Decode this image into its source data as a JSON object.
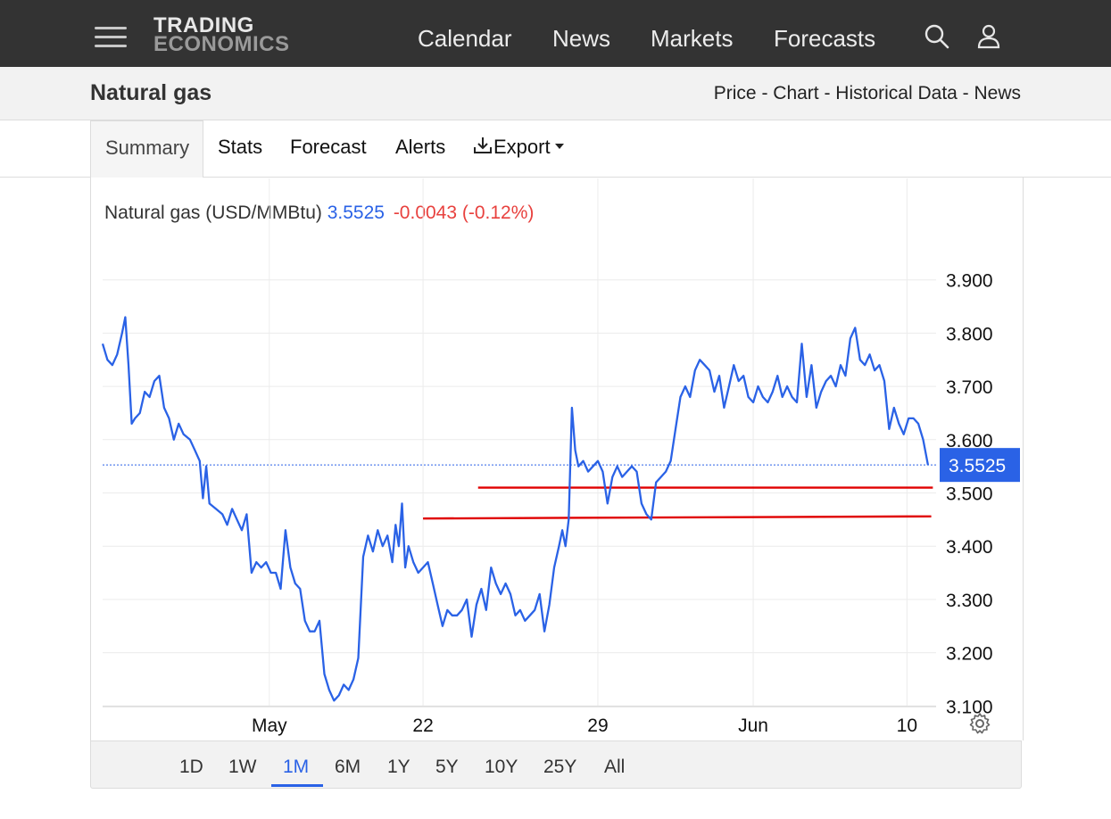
{
  "nav": {
    "logo_line1": "TRADING",
    "logo_line2": "ECONOMICS",
    "links": [
      "Calendar",
      "News",
      "Markets",
      "Forecasts"
    ]
  },
  "header": {
    "title": "Natural gas",
    "breadcrumb": "Price - Chart - Historical Data - News"
  },
  "tabs": {
    "summary": "Summary",
    "stats": "Stats",
    "forecast": "Forecast",
    "alerts": "Alerts",
    "export": "Export"
  },
  "legend": {
    "name": "Natural gas (USD/MMBtu)",
    "value": "3.5525",
    "change": "-0.0043 (-0.12%)"
  },
  "ranges": [
    "1D",
    "1W",
    "1M",
    "6M",
    "1Y",
    "5Y",
    "10Y",
    "25Y",
    "All"
  ],
  "active_range": "1M",
  "colors": {
    "line": "#2a62e6",
    "change_negative": "#e8413e",
    "trendlines": "#e00000",
    "nav_bg": "#333333"
  },
  "chart_data": {
    "type": "line",
    "series": [
      {
        "name": "Natural gas (USD/MMBtu)",
        "points": [
          [
            0,
            3.78
          ],
          [
            0.3,
            3.75
          ],
          [
            0.6,
            3.74
          ],
          [
            0.9,
            3.76
          ],
          [
            1.2,
            3.8
          ],
          [
            1.4,
            3.83
          ],
          [
            1.6,
            3.74
          ],
          [
            1.8,
            3.63
          ],
          [
            2.0,
            3.64
          ],
          [
            2.3,
            3.65
          ],
          [
            2.6,
            3.69
          ],
          [
            2.9,
            3.68
          ],
          [
            3.2,
            3.71
          ],
          [
            3.5,
            3.72
          ],
          [
            3.8,
            3.66
          ],
          [
            4.1,
            3.64
          ],
          [
            4.4,
            3.6
          ],
          [
            4.7,
            3.63
          ],
          [
            5.0,
            3.61
          ],
          [
            5.4,
            3.6
          ],
          [
            5.7,
            3.58
          ],
          [
            6.0,
            3.56
          ],
          [
            6.2,
            3.49
          ],
          [
            6.4,
            3.55
          ],
          [
            6.6,
            3.48
          ],
          [
            7.0,
            3.47
          ],
          [
            7.4,
            3.46
          ],
          [
            7.7,
            3.44
          ],
          [
            8.0,
            3.47
          ],
          [
            8.3,
            3.45
          ],
          [
            8.6,
            3.43
          ],
          [
            8.9,
            3.46
          ],
          [
            9.2,
            3.35
          ],
          [
            9.5,
            3.37
          ],
          [
            9.8,
            3.36
          ],
          [
            10.1,
            3.37
          ],
          [
            10.4,
            3.35
          ],
          [
            10.7,
            3.35
          ],
          [
            11.0,
            3.32
          ],
          [
            11.3,
            3.43
          ],
          [
            11.6,
            3.36
          ],
          [
            11.9,
            3.33
          ],
          [
            12.2,
            3.32
          ],
          [
            12.5,
            3.26
          ],
          [
            12.8,
            3.24
          ],
          [
            13.1,
            3.24
          ],
          [
            13.4,
            3.26
          ],
          [
            13.7,
            3.16
          ],
          [
            14.0,
            3.13
          ],
          [
            14.3,
            3.11
          ],
          [
            14.6,
            3.12
          ],
          [
            14.9,
            3.14
          ],
          [
            15.2,
            3.13
          ],
          [
            15.5,
            3.15
          ],
          [
            15.8,
            3.19
          ],
          [
            16.1,
            3.38
          ],
          [
            16.4,
            3.42
          ],
          [
            16.7,
            3.39
          ],
          [
            17.0,
            3.43
          ],
          [
            17.3,
            3.4
          ],
          [
            17.6,
            3.42
          ],
          [
            17.9,
            3.37
          ],
          [
            18.1,
            3.44
          ],
          [
            18.3,
            3.4
          ],
          [
            18.5,
            3.48
          ],
          [
            18.7,
            3.36
          ],
          [
            18.9,
            3.4
          ],
          [
            19.2,
            3.37
          ],
          [
            19.5,
            3.35
          ],
          [
            19.8,
            3.36
          ],
          [
            20.1,
            3.37
          ],
          [
            20.4,
            3.33
          ],
          [
            20.7,
            3.29
          ],
          [
            21.0,
            3.25
          ],
          [
            21.3,
            3.28
          ],
          [
            21.6,
            3.27
          ],
          [
            21.9,
            3.27
          ],
          [
            22.2,
            3.28
          ],
          [
            22.5,
            3.3
          ],
          [
            22.8,
            3.23
          ],
          [
            23.1,
            3.29
          ],
          [
            23.4,
            3.32
          ],
          [
            23.7,
            3.28
          ],
          [
            24.0,
            3.36
          ],
          [
            24.3,
            3.33
          ],
          [
            24.6,
            3.31
          ],
          [
            24.9,
            3.33
          ],
          [
            25.2,
            3.31
          ],
          [
            25.5,
            3.27
          ],
          [
            25.8,
            3.28
          ],
          [
            26.1,
            3.26
          ],
          [
            26.4,
            3.27
          ],
          [
            26.7,
            3.28
          ],
          [
            27.0,
            3.31
          ],
          [
            27.3,
            3.24
          ],
          [
            27.6,
            3.29
          ],
          [
            27.9,
            3.36
          ],
          [
            28.2,
            3.4
          ],
          [
            28.4,
            3.43
          ],
          [
            28.6,
            3.4
          ],
          [
            28.8,
            3.45
          ],
          [
            29.0,
            3.66
          ],
          [
            29.2,
            3.58
          ],
          [
            29.4,
            3.55
          ],
          [
            29.7,
            3.56
          ],
          [
            30.0,
            3.54
          ],
          [
            30.3,
            3.55
          ],
          [
            30.6,
            3.56
          ],
          [
            30.9,
            3.54
          ],
          [
            31.2,
            3.48
          ],
          [
            31.5,
            3.53
          ],
          [
            31.8,
            3.55
          ],
          [
            32.1,
            3.53
          ],
          [
            32.4,
            3.54
          ],
          [
            32.7,
            3.55
          ],
          [
            33.0,
            3.54
          ],
          [
            33.3,
            3.48
          ],
          [
            33.6,
            3.46
          ],
          [
            33.9,
            3.45
          ],
          [
            34.2,
            3.52
          ],
          [
            34.5,
            3.53
          ],
          [
            34.8,
            3.54
          ],
          [
            35.1,
            3.56
          ],
          [
            35.4,
            3.62
          ],
          [
            35.7,
            3.68
          ],
          [
            36.0,
            3.7
          ],
          [
            36.3,
            3.68
          ],
          [
            36.6,
            3.73
          ],
          [
            36.9,
            3.75
          ],
          [
            37.2,
            3.74
          ],
          [
            37.5,
            3.73
          ],
          [
            37.8,
            3.69
          ],
          [
            38.1,
            3.72
          ],
          [
            38.4,
            3.66
          ],
          [
            38.7,
            3.7
          ],
          [
            39.0,
            3.74
          ],
          [
            39.3,
            3.71
          ],
          [
            39.6,
            3.72
          ],
          [
            39.9,
            3.68
          ],
          [
            40.2,
            3.67
          ],
          [
            40.5,
            3.7
          ],
          [
            40.8,
            3.68
          ],
          [
            41.1,
            3.67
          ],
          [
            41.4,
            3.69
          ],
          [
            41.7,
            3.72
          ],
          [
            42.0,
            3.68
          ],
          [
            42.3,
            3.7
          ],
          [
            42.6,
            3.68
          ],
          [
            42.9,
            3.67
          ],
          [
            43.2,
            3.78
          ],
          [
            43.5,
            3.68
          ],
          [
            43.8,
            3.74
          ],
          [
            44.1,
            3.66
          ],
          [
            44.4,
            3.69
          ],
          [
            44.7,
            3.71
          ],
          [
            45.0,
            3.72
          ],
          [
            45.3,
            3.7
          ],
          [
            45.6,
            3.74
          ],
          [
            45.9,
            3.72
          ],
          [
            46.2,
            3.79
          ],
          [
            46.5,
            3.81
          ],
          [
            46.8,
            3.75
          ],
          [
            47.1,
            3.74
          ],
          [
            47.4,
            3.76
          ],
          [
            47.7,
            3.73
          ],
          [
            48.0,
            3.74
          ],
          [
            48.3,
            3.71
          ],
          [
            48.6,
            3.62
          ],
          [
            48.9,
            3.66
          ],
          [
            49.2,
            3.63
          ],
          [
            49.5,
            3.61
          ],
          [
            49.8,
            3.64
          ],
          [
            50.1,
            3.64
          ],
          [
            50.4,
            3.63
          ],
          [
            50.7,
            3.6
          ],
          [
            51.0,
            3.5525
          ]
        ]
      }
    ],
    "x_ticks": [
      {
        "label": "May",
        "x": 10.3
      },
      {
        "label": "22",
        "x": 19.8
      },
      {
        "label": "29",
        "x": 30.6
      },
      {
        "label": "Jun",
        "x": 40.2
      },
      {
        "label": "10",
        "x": 49.7
      }
    ],
    "xlim": [
      0,
      51.5
    ],
    "ylim": [
      3.0,
      4.0
    ],
    "y_ticks": [
      3.1,
      3.2,
      3.3,
      3.4,
      3.5,
      3.6,
      3.7,
      3.8,
      3.9
    ],
    "y_tick_labels": [
      "3.100",
      "3.200",
      "3.300",
      "3.400",
      "3.500",
      "3.600",
      "3.700",
      "3.800",
      "3.900"
    ],
    "last_value": 3.5525,
    "last_value_label": "3.5525",
    "trendlines": [
      {
        "x": [
          23.2,
          51.3
        ],
        "y": [
          3.51,
          3.51
        ]
      },
      {
        "x": [
          19.8,
          51.2
        ],
        "y": [
          3.452,
          3.456
        ]
      }
    ],
    "grid": true
  }
}
